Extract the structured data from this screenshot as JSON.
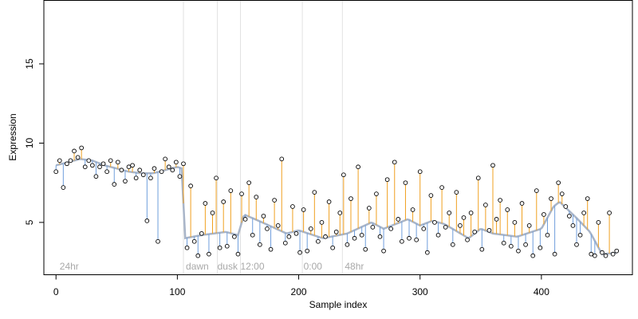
{
  "chart_data": {
    "type": "scatter",
    "title": "",
    "xlabel": "Sample index",
    "ylabel": "Expression",
    "xlim": [
      -10,
      475
    ],
    "ylim": [
      1.7,
      19
    ],
    "x_ticks": [
      0,
      100,
      200,
      300,
      400
    ],
    "y_ticks": [
      5,
      10,
      15
    ],
    "grid": false,
    "legend": "none",
    "vertical_markers": [
      105,
      133,
      152,
      203,
      236
    ],
    "annotations": [
      {
        "text": "24hr",
        "x": 3
      },
      {
        "text": "dawn",
        "x": 107
      },
      {
        "text": "dusk",
        "x": 133
      },
      {
        "text": "12:00",
        "x": 152
      },
      {
        "text": "0:00",
        "x": 204
      },
      {
        "text": "48hr",
        "x": 238
      }
    ],
    "trend_anchors": {
      "x": [
        0,
        10,
        20,
        30,
        40,
        50,
        60,
        70,
        80,
        90,
        100,
        104,
        106,
        120,
        140,
        150,
        155,
        170,
        190,
        200,
        220,
        240,
        260,
        270,
        290,
        300,
        310,
        320,
        340,
        350,
        360,
        380,
        400,
        410,
        415,
        430,
        440,
        450,
        465
      ],
      "y": [
        8.6,
        8.8,
        9.0,
        8.9,
        8.6,
        8.4,
        8.2,
        8.1,
        8.1,
        8.3,
        8.5,
        8.4,
        4.0,
        4.2,
        4.4,
        4.2,
        5.5,
        5.0,
        4.3,
        4.5,
        4.0,
        4.3,
        5.0,
        4.6,
        5.2,
        4.8,
        5.1,
        4.9,
        4.0,
        4.6,
        4.3,
        4.1,
        4.6,
        6.0,
        6.3,
        5.2,
        4.4,
        3.0,
        3.1
      ]
    },
    "colors": {
      "trend": "#a9b5c8",
      "above": "#f0a020",
      "below": "#6f9edc",
      "point_stroke": "#000000",
      "marker": "#e2e2e2",
      "annotation": "#a8a8a8"
    },
    "series": [
      {
        "x": [
          0,
          3,
          6,
          9,
          12,
          15,
          18,
          21,
          24,
          27,
          30,
          33,
          36,
          39,
          42,
          45,
          48,
          51,
          54,
          57,
          60,
          63,
          66,
          69,
          72,
          75,
          78,
          81,
          84,
          87,
          90,
          93,
          96,
          99,
          102,
          105,
          108,
          111,
          114,
          117,
          120,
          123,
          126,
          129,
          132,
          135,
          138,
          141,
          144,
          147,
          150,
          153,
          156,
          159,
          162,
          165,
          168,
          171,
          174,
          177,
          180,
          183,
          186,
          189,
          192,
          195,
          198,
          201,
          204,
          207,
          210,
          213,
          216,
          219,
          222,
          225,
          228,
          231,
          234,
          237,
          240,
          243,
          246,
          249,
          252,
          255,
          258,
          261,
          264,
          267,
          270,
          273,
          276,
          279,
          282,
          285,
          288,
          291,
          294,
          297,
          300,
          303,
          306,
          309,
          312,
          315,
          318,
          321,
          324,
          327,
          330,
          333,
          336,
          339,
          342,
          345,
          348,
          351,
          354,
          357,
          360,
          363,
          366,
          369,
          372,
          375,
          378,
          381,
          384,
          387,
          390,
          393,
          396,
          399,
          402,
          405,
          408,
          411,
          414,
          417,
          420,
          423,
          426,
          429,
          432,
          435,
          438,
          441,
          444,
          447,
          450,
          453,
          456,
          459,
          462
        ],
        "y": [
          8.2,
          8.9,
          7.2,
          8.7,
          8.9,
          9.5,
          9.1,
          9.7,
          8.5,
          8.9,
          8.6,
          7.9,
          8.5,
          8.7,
          8.2,
          8.9,
          7.4,
          8.8,
          8.3,
          7.6,
          8.5,
          8.6,
          7.8,
          8.3,
          8.0,
          5.1,
          7.8,
          8.4,
          3.8,
          8.2,
          9.0,
          8.5,
          8.3,
          8.8,
          7.9,
          8.7,
          3.4,
          7.3,
          3.8,
          2.9,
          4.3,
          6.2,
          3.0,
          5.6,
          7.8,
          3.4,
          6.3,
          3.5,
          7.0,
          4.1,
          3.0,
          6.8,
          5.2,
          7.5,
          4.2,
          6.6,
          3.6,
          5.4,
          4.6,
          3.3,
          6.4,
          4.8,
          9.0,
          3.7,
          4.1,
          6.0,
          4.3,
          3.1,
          5.8,
          3.2,
          4.6,
          6.9,
          3.8,
          5.0,
          4.1,
          6.3,
          3.4,
          4.4,
          5.6,
          8.0,
          3.6,
          6.5,
          4.0,
          8.5,
          4.2,
          3.3,
          5.9,
          4.7,
          6.8,
          4.1,
          3.2,
          7.7,
          4.6,
          8.8,
          5.2,
          3.8,
          7.5,
          4.0,
          5.8,
          3.9,
          8.2,
          4.6,
          3.1,
          6.7,
          5.0,
          4.2,
          7.2,
          4.7,
          5.6,
          3.6,
          6.9,
          4.8,
          5.3,
          3.9,
          5.6,
          4.4,
          7.8,
          3.3,
          6.1,
          4.5,
          8.6,
          5.2,
          6.4,
          3.7,
          5.8,
          3.5,
          5.0,
          3.2,
          6.2,
          3.6,
          4.8,
          2.9,
          7.0,
          3.4,
          5.5,
          4.2,
          6.5,
          3.0,
          7.5,
          6.8,
          6.0,
          5.4,
          4.8,
          3.6,
          4.2,
          5.6,
          6.5,
          3.0,
          2.9,
          5.0,
          3.1,
          2.9,
          5.6,
          3.0,
          3.2
        ]
      }
    ]
  }
}
